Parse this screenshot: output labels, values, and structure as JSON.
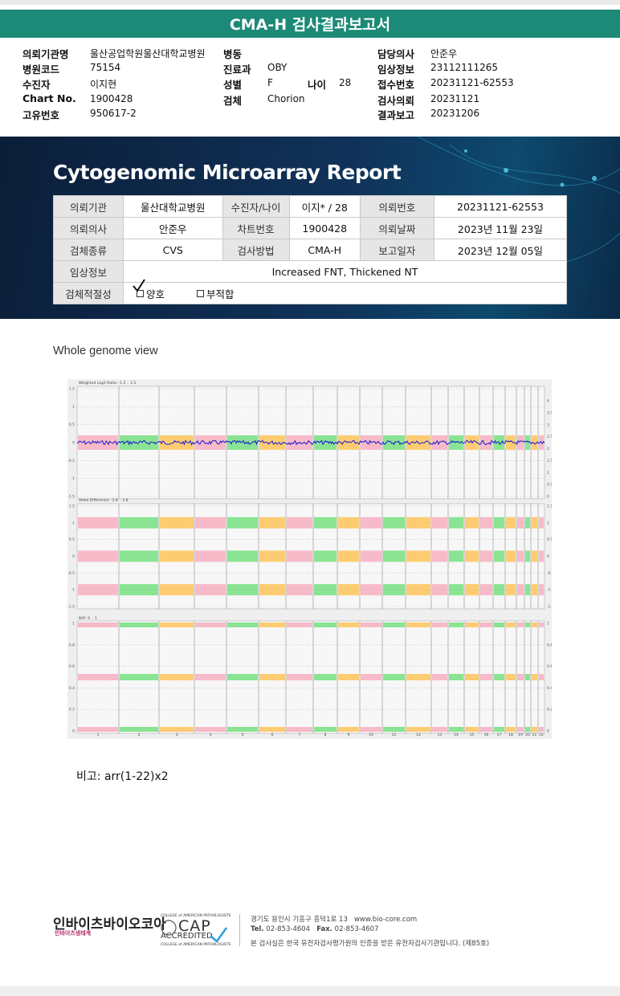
{
  "header": {
    "title": "CMA-H 검사결과보고서"
  },
  "patient_info": {
    "rows": [
      [
        {
          "label": "의뢰기관명",
          "value": "울산공업학원울산대학교병원"
        },
        {
          "label": "병동"
        },
        {
          "label": "담당의사",
          "value": "안준우"
        }
      ],
      [
        {
          "label": "병원코드",
          "value": "75154"
        },
        {
          "label": "진료과",
          "value": "OBY"
        },
        {
          "label": "임상정보",
          "value": "23112111265"
        }
      ],
      [
        {
          "label": "수진자",
          "value": "이지현"
        },
        {
          "label": "성별",
          "value": "F"
        },
        {
          "label": "나이",
          "value": "28"
        },
        {
          "label": "접수번호",
          "value": "20231121-62553"
        }
      ],
      [
        {
          "label": "Chart No.",
          "value": "1900428"
        },
        {
          "label": "검체",
          "value": "Chorion"
        },
        {
          "label": "검사의뢰",
          "value": "20231121"
        }
      ],
      [
        {
          "label": "고유번호",
          "value": "950617-2"
        },
        {
          "label": "결과보고",
          "value": "20231206"
        }
      ]
    ]
  },
  "report": {
    "title": "Cytogenomic Microarray Report",
    "rows": [
      [
        {
          "label": "의뢰기관",
          "value": "울산대학교병원"
        },
        {
          "label": "수진자/나이",
          "value": "이지* / 28"
        },
        {
          "label": "의뢰번호",
          "value": "20231121-62553"
        }
      ],
      [
        {
          "label": "의뢰의사",
          "value": "안준우"
        },
        {
          "label": "차트번호",
          "value": "1900428"
        },
        {
          "label": "의뢰날짜",
          "value": "2023년 11월 23일"
        }
      ],
      [
        {
          "label": "검체종류",
          "value": "CVS"
        },
        {
          "label": "검사방법",
          "value": "CMA-H"
        },
        {
          "label": "보고일자",
          "value": "2023년 12월 05일"
        }
      ],
      [
        {
          "label": "임상정보",
          "value": "Increased FNT, Thickened NT"
        }
      ]
    ],
    "adequacy": {
      "label": "검체적절성",
      "options": [
        "양호",
        "부적합"
      ]
    }
  },
  "genome": {
    "title": "Whole genome view",
    "panels": [
      {
        "title": "Weighted Log2 Ratio: -1.5 .. 1.5",
        "left_ticks": [
          "1.5",
          "1",
          "0.5",
          "0",
          "-0.5",
          "-1",
          "-1.5"
        ],
        "right_ticks": [
          "4",
          "3.5",
          "3",
          "2.5",
          "2",
          "1.5",
          "1",
          "0.5",
          "0"
        ]
      },
      {
        "title": "Allele Difference: -1.8 .. 1.8",
        "left_ticks": [
          "1.5",
          "1",
          "0.5",
          "0",
          "-0.5",
          "-1",
          "-1.5"
        ],
        "right_ticks": [
          "1.5",
          "1",
          "0.5",
          "0",
          "-0.5",
          "-1",
          "-1.5"
        ]
      },
      {
        "title": "BAF: 0 .. 1",
        "left_ticks": [
          "1",
          "0.8",
          "0.6",
          "0.4",
          "0.2",
          "0"
        ],
        "right_ticks": [
          "1",
          "0.8",
          "0.6",
          "0.4",
          "0.2",
          "0"
        ]
      }
    ],
    "chromosomes": [
      "1",
      "2",
      "3",
      "4",
      "5",
      "6",
      "7",
      "8",
      "9",
      "10",
      "11",
      "12",
      "13",
      "14",
      "15",
      "16",
      "17",
      "18",
      "19",
      "20",
      "21",
      "22"
    ]
  },
  "remark": {
    "label": "비고:",
    "value": "arr(1-22)x2"
  },
  "footer": {
    "company": "인바이츠바이오코아",
    "company_sub": "인바이츠생태계",
    "cap_top": "COLLEGE of AMERICAN PATHOLOGISTS",
    "cap": "CAP",
    "cap_accredited": "ACCREDITED",
    "cap_bottom": "COLLEGE of AMERICAN PATHOLOGISTS",
    "address": "경기도 용인시 기흥구 흥덕1로 13",
    "web": "www.bio-core.com",
    "tel_label": "Tel.",
    "tel": "02-853-4604",
    "fax_label": "Fax.",
    "fax": "02-853-4607",
    "note": "본 검사실은 한국 유전자검사평가원의 인증을 받은 유전자검사기관입니다. (제85호)"
  }
}
